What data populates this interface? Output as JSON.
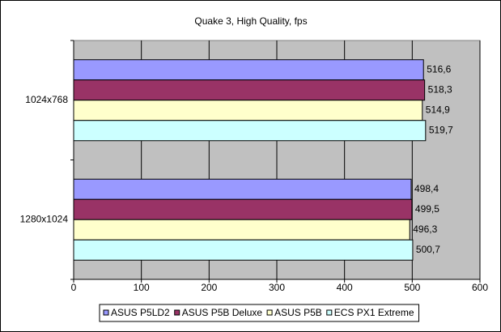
{
  "chart_data": {
    "type": "hbar",
    "title": "Quake 3, High Quality, fps",
    "categories": [
      "1024x768",
      "1280x1024"
    ],
    "series": [
      {
        "name": "ASUS P5LD2",
        "color": "#9999ff",
        "values": [
          516.6,
          498.4
        ],
        "value_labels": [
          "516,6",
          "498,4"
        ]
      },
      {
        "name": "ASUS P5B Deluxe",
        "color": "#993366",
        "values": [
          518.3,
          499.5
        ],
        "value_labels": [
          "518,3",
          "499,5"
        ]
      },
      {
        "name": "ASUS P5B",
        "color": "#ffffcc",
        "values": [
          514.9,
          496.3
        ],
        "value_labels": [
          "514,9",
          "496,3"
        ]
      },
      {
        "name": "ECS PX1 Extreme",
        "color": "#ccffff",
        "values": [
          519.7,
          500.7
        ],
        "value_labels": [
          "519,7",
          "500,7"
        ]
      }
    ],
    "xlim": [
      0,
      600
    ],
    "xticks": [
      0,
      100,
      200,
      300,
      400,
      500,
      600
    ],
    "grid": true,
    "legend": "bottom"
  }
}
